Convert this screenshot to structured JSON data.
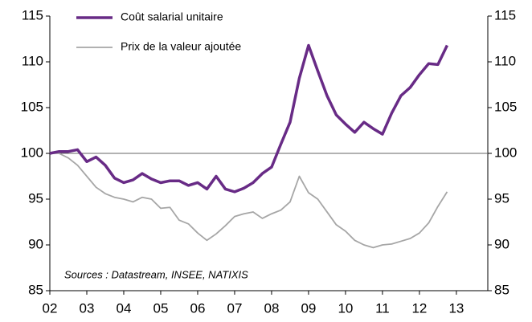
{
  "chart_data": {
    "type": "line",
    "annotation": "Sources : Datastream, INSEE, NATIXIS",
    "x": [
      2002,
      2002.25,
      2002.5,
      2002.75,
      2003,
      2003.25,
      2003.5,
      2003.75,
      2004,
      2004.25,
      2004.5,
      2004.75,
      2005,
      2005.25,
      2005.5,
      2005.75,
      2006,
      2006.25,
      2006.5,
      2006.75,
      2007,
      2007.25,
      2007.5,
      2007.75,
      2008,
      2008.25,
      2008.5,
      2008.75,
      2009,
      2009.25,
      2009.5,
      2009.75,
      2010,
      2010.25,
      2010.5,
      2010.75,
      2011,
      2011.25,
      2011.5,
      2011.75,
      2012,
      2012.25,
      2012.5,
      2012.75
    ],
    "series": [
      {
        "name": "Coût salarial unitaire",
        "color": "#682b86",
        "width": 3.5,
        "values": [
          100,
          100.2,
          100.2,
          100.4,
          99.1,
          99.6,
          98.7,
          97.3,
          96.8,
          97.1,
          97.8,
          97.2,
          96.8,
          97.0,
          97.0,
          96.5,
          96.8,
          96.1,
          97.5,
          96.1,
          95.8,
          96.2,
          96.8,
          97.8,
          98.5,
          101.0,
          103.4,
          108.2,
          111.8,
          109.0,
          106.3,
          104.2,
          103.2,
          102.3,
          103.4,
          102.7,
          102.1,
          104.4,
          106.3,
          107.2,
          108.6,
          109.8,
          109.7,
          111.8
        ]
      },
      {
        "name": "Prix de la valeur ajoutée",
        "color": "#a6a6a6",
        "width": 1.8,
        "values": [
          100,
          100.0,
          99.5,
          98.7,
          97.5,
          96.3,
          95.6,
          95.2,
          95.0,
          94.7,
          95.2,
          95.0,
          94.0,
          94.1,
          92.7,
          92.3,
          91.3,
          90.5,
          91.2,
          92.1,
          93.1,
          93.4,
          93.6,
          92.9,
          93.4,
          93.8,
          94.7,
          97.5,
          95.7,
          95.0,
          93.6,
          92.2,
          91.5,
          90.5,
          90.0,
          89.7,
          90.0,
          90.1,
          90.4,
          90.7,
          91.3,
          92.4,
          94.2,
          95.8
        ]
      }
    ],
    "reference_line": 100,
    "xlim": [
      2002,
      2013.85
    ],
    "xticks": [
      {
        "value": 2002,
        "label": "02"
      },
      {
        "value": 2003,
        "label": "03"
      },
      {
        "value": 2004,
        "label": "04"
      },
      {
        "value": 2005,
        "label": "05"
      },
      {
        "value": 2006,
        "label": "06"
      },
      {
        "value": 2007,
        "label": "07"
      },
      {
        "value": 2008,
        "label": "08"
      },
      {
        "value": 2009,
        "label": "09"
      },
      {
        "value": 2010,
        "label": "10"
      },
      {
        "value": 2011,
        "label": "11"
      },
      {
        "value": 2012,
        "label": "12"
      },
      {
        "value": 2013,
        "label": "13"
      }
    ],
    "ylim": [
      85,
      115
    ],
    "yticks": [
      85,
      90,
      95,
      100,
      105,
      110,
      115
    ]
  }
}
